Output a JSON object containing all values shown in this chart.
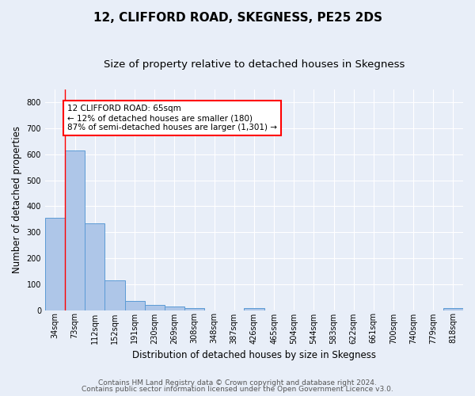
{
  "title": "12, CLIFFORD ROAD, SKEGNESS, PE25 2DS",
  "subtitle": "Size of property relative to detached houses in Skegness",
  "xlabel": "Distribution of detached houses by size in Skegness",
  "ylabel": "Number of detached properties",
  "categories": [
    "34sqm",
    "73sqm",
    "112sqm",
    "152sqm",
    "191sqm",
    "230sqm",
    "269sqm",
    "308sqm",
    "348sqm",
    "387sqm",
    "426sqm",
    "465sqm",
    "504sqm",
    "544sqm",
    "583sqm",
    "622sqm",
    "661sqm",
    "700sqm",
    "740sqm",
    "779sqm",
    "818sqm"
  ],
  "values": [
    355,
    613,
    335,
    113,
    36,
    19,
    14,
    8,
    0,
    0,
    8,
    0,
    0,
    0,
    0,
    0,
    0,
    0,
    0,
    0,
    8
  ],
  "bar_color": "#aec6e8",
  "bar_edge_color": "#5b9bd5",
  "annotation_line1": "12 CLIFFORD ROAD: 65sqm",
  "annotation_line2": "← 12% of detached houses are smaller (180)",
  "annotation_line3": "87% of semi-detached houses are larger (1,301) →",
  "annotation_box_color": "white",
  "annotation_box_edge_color": "red",
  "vline_color": "red",
  "ylim": [
    0,
    850
  ],
  "yticks": [
    0,
    100,
    200,
    300,
    400,
    500,
    600,
    700,
    800
  ],
  "footer_line1": "Contains HM Land Registry data © Crown copyright and database right 2024.",
  "footer_line2": "Contains public sector information licensed under the Open Government Licence v3.0.",
  "bg_color": "#e8eef8",
  "plot_bg_color": "#e8eef8",
  "title_fontsize": 11,
  "subtitle_fontsize": 9.5,
  "axis_label_fontsize": 8.5,
  "tick_fontsize": 7,
  "annotation_fontsize": 7.5,
  "footer_fontsize": 6.5
}
